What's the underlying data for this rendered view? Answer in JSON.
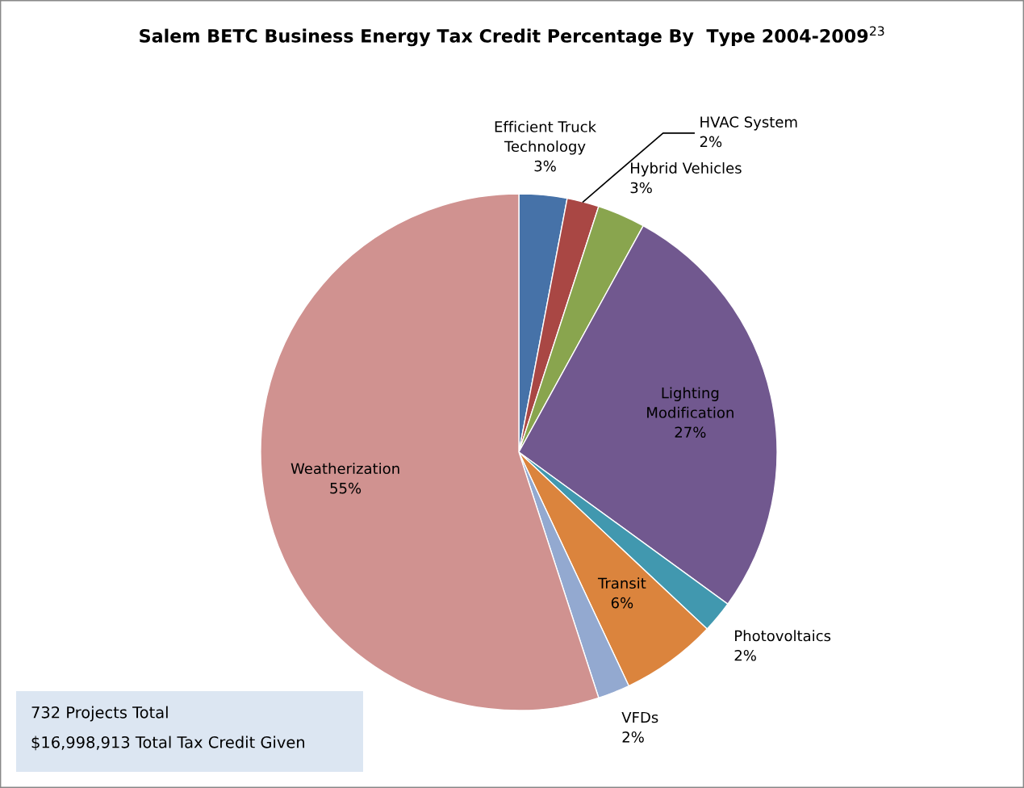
{
  "chart_data": {
    "type": "pie",
    "title": "Salem BETC Business Energy Tax Credit Percentage By  Type 2004-2009$^{23}$",
    "categories": [
      "Efficient Truck Technology",
      "HVAC System",
      "Hybrid Vehicles",
      "Lighting Modification",
      "Photovoltaics",
      "Transit",
      "VFDs",
      "Weatherization"
    ],
    "values": [
      3,
      2,
      3,
      27,
      2,
      6,
      2,
      55
    ],
    "colors": [
      "#4672a8",
      "#a94744",
      "#89a54e",
      "#71588f",
      "#4198af",
      "#db843d",
      "#93a9d0",
      "#d09290"
    ],
    "value_labels": [
      "3%",
      "2%",
      "3%",
      "27%",
      "2%",
      "6%",
      "2%",
      "55%"
    ],
    "annotations": [
      "732 Projects Total",
      "$16,998,913 Total Tax Credit Given"
    ]
  }
}
